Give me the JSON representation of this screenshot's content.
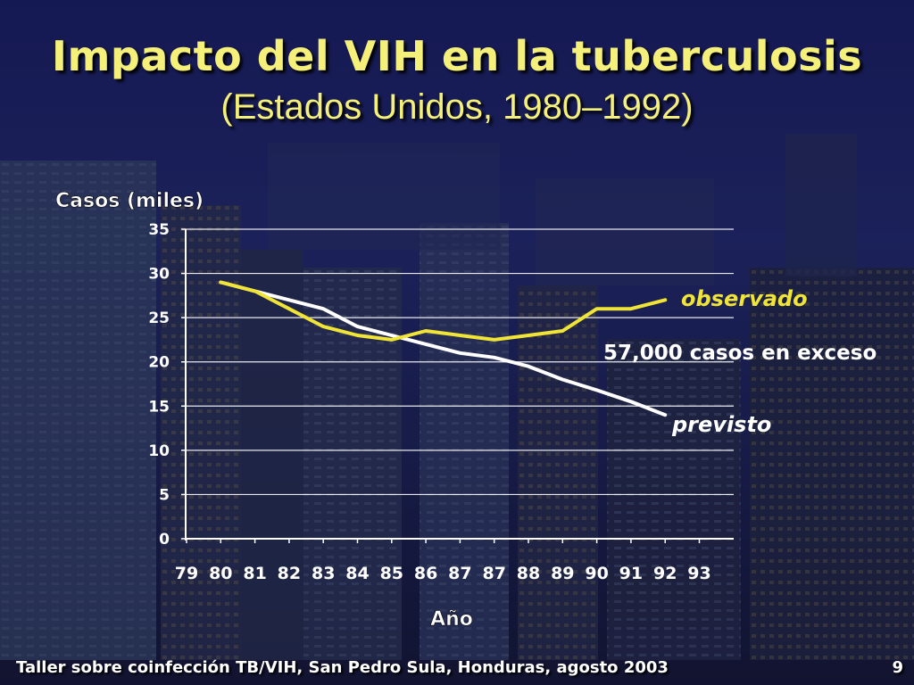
{
  "slide": {
    "title": "Impacto del VIH en la tuberculosis",
    "subtitle": "(Estados Unidos, 1980–1992)",
    "footer": "Taller sobre coinfección TB/VIH, San Pedro Sula, Honduras, agosto 2003",
    "page_number": "9"
  },
  "colors": {
    "observed": "#f0e436",
    "expected": "#ffffff",
    "title": "#f4f07a",
    "axis": "#ffffff"
  },
  "chart_data": {
    "type": "line",
    "title": "",
    "ylabel": "Casos (miles)",
    "xlabel": "Año",
    "ylim": [
      0,
      35
    ],
    "yticks": [
      0,
      5,
      10,
      15,
      20,
      25,
      30,
      35
    ],
    "xticks": [
      "79",
      "80",
      "81",
      "82",
      "83",
      "84",
      "85",
      "86",
      "87",
      "87",
      "88",
      "89",
      "90",
      "91",
      "92",
      "93"
    ],
    "grid": true,
    "series": [
      {
        "name": "observado",
        "color": "#f0e436",
        "tick_index": [
          1,
          2,
          3,
          4,
          5,
          6,
          7,
          8,
          9,
          10,
          11,
          12,
          13,
          14
        ],
        "values": [
          29,
          28,
          26,
          24,
          23,
          22.5,
          23.5,
          23,
          22.5,
          23,
          23.5,
          26,
          26,
          27
        ]
      },
      {
        "name": "previsto",
        "color": "#ffffff",
        "tick_index": [
          1,
          2,
          3,
          4,
          5,
          6,
          7,
          8,
          9,
          10,
          11,
          12,
          13,
          14
        ],
        "values": [
          29,
          28,
          27,
          26,
          24,
          23,
          22,
          21,
          20.5,
          19.5,
          18,
          16.8,
          15.5,
          14
        ]
      }
    ],
    "annotations": [
      {
        "text": "57,000 casos en exceso"
      }
    ]
  }
}
